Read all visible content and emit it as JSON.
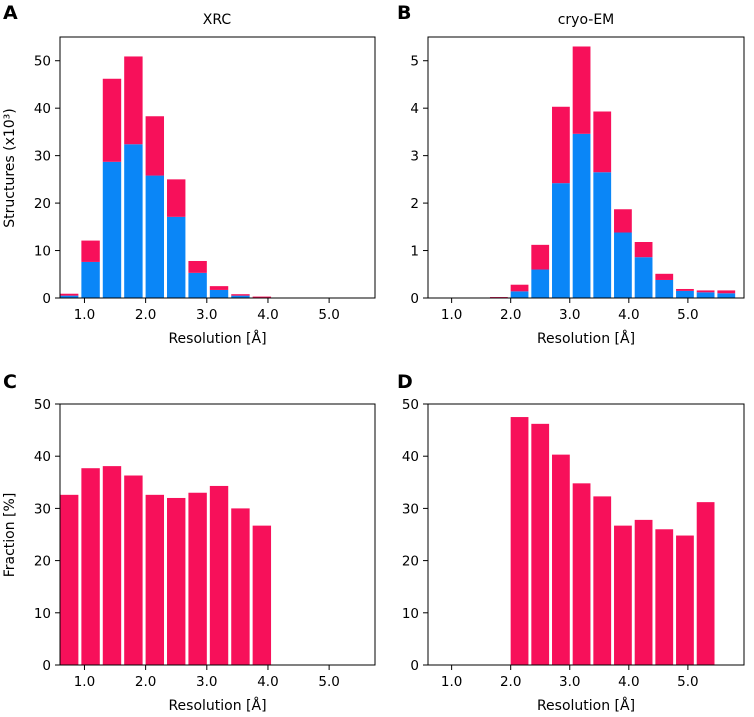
{
  "colors": {
    "red": "#f7105a",
    "blue": "#0a86f7"
  },
  "chart_data": [
    {
      "id": "A",
      "type": "bar",
      "stacked": true,
      "panel_letter": "A",
      "title": "XRC",
      "xlabel": "Resolution [Å]",
      "ylabel": "Structures (x10³)",
      "xlim": [
        0.6,
        5.75
      ],
      "ylim": [
        0,
        55
      ],
      "xticks": [
        1.0,
        2.0,
        3.0,
        4.0,
        5.0
      ],
      "xtick_labels": [
        "1.0",
        "2.0",
        "3.0",
        "4.0",
        "5.0"
      ],
      "yticks": [
        0,
        10,
        20,
        30,
        40,
        50
      ],
      "ytick_labels": [
        "0",
        "10",
        "20",
        "30",
        "40",
        "50"
      ],
      "bin_width": 0.35,
      "x": [
        0.75,
        1.1,
        1.45,
        1.8,
        2.15,
        2.5,
        2.85,
        3.2,
        3.55,
        3.9,
        4.25
      ],
      "series": [
        {
          "name": "blue",
          "color": "#0a86f7",
          "values": [
            0.5,
            7.6,
            28.7,
            32.4,
            25.8,
            17.1,
            5.3,
            1.7,
            0.5,
            0.1,
            0.0
          ]
        },
        {
          "name": "red",
          "color": "#f7105a",
          "values": [
            0.4,
            4.5,
            17.5,
            18.5,
            12.5,
            7.9,
            2.5,
            0.8,
            0.3,
            0.2,
            0.0
          ]
        }
      ]
    },
    {
      "id": "B",
      "type": "bar",
      "stacked": true,
      "panel_letter": "B",
      "title": "cryo-EM",
      "xlabel": "Resolution [Å]",
      "ylabel": "",
      "xlim": [
        0.6,
        5.95
      ],
      "ylim": [
        0,
        5.5
      ],
      "xticks": [
        1.0,
        2.0,
        3.0,
        4.0,
        5.0
      ],
      "xtick_labels": [
        "1.0",
        "2.0",
        "3.0",
        "4.0",
        "5.0"
      ],
      "yticks": [
        0,
        1,
        2,
        3,
        4,
        5
      ],
      "ytick_labels": [
        "0",
        "1",
        "2",
        "3",
        "4",
        "5"
      ],
      "bin_width": 0.35,
      "x": [
        1.45,
        1.8,
        2.15,
        2.5,
        2.85,
        3.2,
        3.55,
        3.9,
        4.25,
        4.6,
        4.95,
        5.3,
        5.65
      ],
      "series": [
        {
          "name": "blue",
          "color": "#0a86f7",
          "values": [
            0.0,
            0.0,
            0.14,
            0.6,
            2.42,
            3.46,
            2.65,
            1.38,
            0.86,
            0.38,
            0.15,
            0.12,
            0.1
          ]
        },
        {
          "name": "red",
          "color": "#f7105a",
          "values": [
            0.0,
            0.02,
            0.14,
            0.52,
            1.61,
            1.84,
            1.28,
            0.49,
            0.32,
            0.13,
            0.04,
            0.04,
            0.06
          ]
        }
      ]
    },
    {
      "id": "C",
      "type": "bar",
      "stacked": false,
      "panel_letter": "C",
      "title": "",
      "xlabel": "Resolution [Å]",
      "ylabel": "Fraction [%]",
      "xlim": [
        0.6,
        5.75
      ],
      "ylim": [
        0,
        50
      ],
      "xticks": [
        1.0,
        2.0,
        3.0,
        4.0,
        5.0
      ],
      "xtick_labels": [
        "1.0",
        "2.0",
        "3.0",
        "4.0",
        "5.0"
      ],
      "yticks": [
        0,
        10,
        20,
        30,
        40,
        50
      ],
      "ytick_labels": [
        "0",
        "10",
        "20",
        "30",
        "40",
        "50"
      ],
      "bin_width": 0.35,
      "x": [
        0.75,
        1.1,
        1.45,
        1.8,
        2.15,
        2.5,
        2.85,
        3.2,
        3.55,
        3.9,
        4.25
      ],
      "series": [
        {
          "name": "red",
          "color": "#f7105a",
          "values": [
            32.6,
            37.7,
            38.1,
            36.3,
            32.6,
            32.0,
            33.0,
            34.3,
            30.0,
            26.7,
            0
          ]
        }
      ]
    },
    {
      "id": "D",
      "type": "bar",
      "stacked": false,
      "panel_letter": "D",
      "title": "",
      "xlabel": "Resolution [Å]",
      "ylabel": "",
      "xlim": [
        0.6,
        5.95
      ],
      "ylim": [
        0,
        50
      ],
      "xticks": [
        1.0,
        2.0,
        3.0,
        4.0,
        5.0
      ],
      "xtick_labels": [
        "1.0",
        "2.0",
        "3.0",
        "4.0",
        "5.0"
      ],
      "yticks": [
        0,
        10,
        20,
        30,
        40,
        50
      ],
      "ytick_labels": [
        "0",
        "10",
        "20",
        "30",
        "40",
        "50"
      ],
      "bin_width": 0.35,
      "x": [
        2.15,
        2.5,
        2.85,
        3.2,
        3.55,
        3.9,
        4.25,
        4.6,
        4.95,
        5.3,
        5.65
      ],
      "series": [
        {
          "name": "red",
          "color": "#f7105a",
          "values": [
            47.5,
            46.2,
            40.3,
            34.8,
            32.3,
            26.7,
            27.8,
            26.0,
            24.8,
            31.2,
            0
          ]
        }
      ]
    }
  ]
}
